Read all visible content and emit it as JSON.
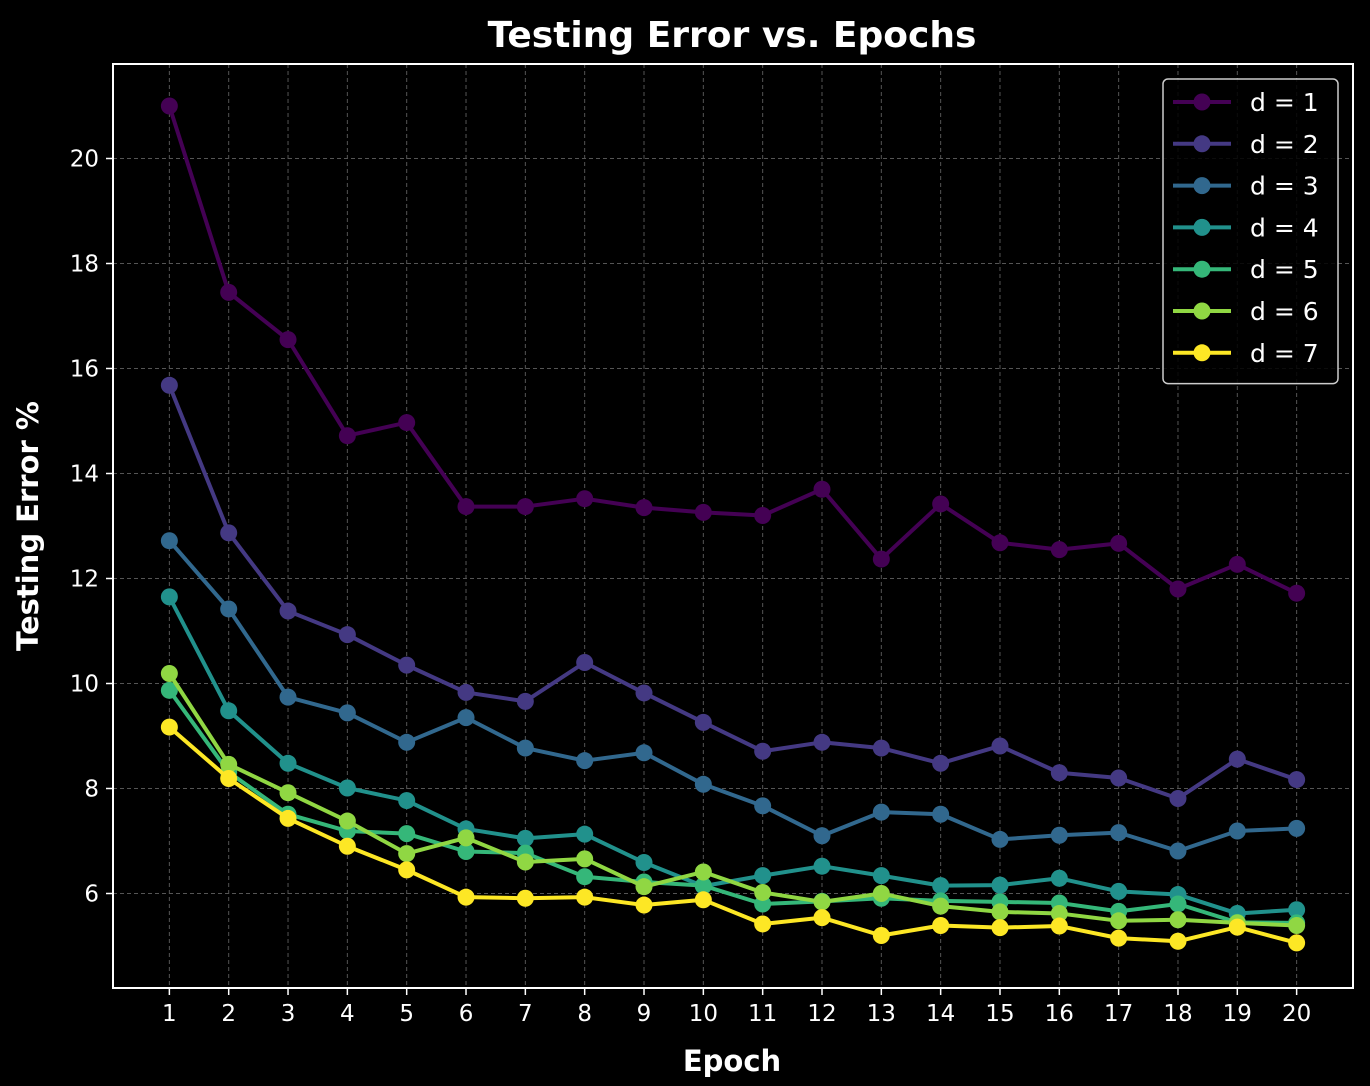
{
  "chart_data": {
    "type": "line",
    "title": "Testing Error vs. Epochs",
    "xlabel": "Epoch",
    "ylabel": "Testing Error %",
    "x": [
      1,
      2,
      3,
      4,
      5,
      6,
      7,
      8,
      9,
      10,
      11,
      12,
      13,
      14,
      15,
      16,
      17,
      18,
      19,
      20
    ],
    "xlim": [
      0.05,
      20.95
    ],
    "ylim": [
      4.2,
      21.8
    ],
    "yticks": [
      6,
      8,
      10,
      12,
      14,
      16,
      18,
      20
    ],
    "grid": true,
    "legend_position": "top-right",
    "series": [
      {
        "name": "d = 1",
        "color": "#440154",
        "values": [
          21.0,
          17.45,
          16.55,
          14.72,
          14.97,
          13.37,
          13.37,
          13.52,
          13.35,
          13.26,
          13.2,
          13.7,
          12.37,
          13.42,
          12.68,
          12.55,
          12.67,
          11.8,
          12.27,
          11.72
        ]
      },
      {
        "name": "d = 2",
        "color": "#443983",
        "values": [
          15.68,
          12.87,
          11.38,
          10.93,
          10.35,
          9.83,
          9.66,
          10.4,
          9.82,
          9.26,
          8.71,
          8.88,
          8.77,
          8.48,
          8.81,
          8.3,
          8.2,
          7.81,
          8.56,
          8.17
        ]
      },
      {
        "name": "d = 3",
        "color": "#31688e",
        "values": [
          12.72,
          11.42,
          9.74,
          9.44,
          8.88,
          9.35,
          8.77,
          8.53,
          8.68,
          8.08,
          7.67,
          7.1,
          7.55,
          7.51,
          7.03,
          7.11,
          7.16,
          6.81,
          7.19,
          7.24
        ]
      },
      {
        "name": "d = 4",
        "color": "#21918c",
        "values": [
          11.65,
          9.48,
          8.48,
          8.01,
          7.77,
          7.23,
          7.05,
          7.13,
          6.59,
          6.14,
          6.34,
          6.52,
          6.34,
          6.15,
          6.16,
          6.29,
          6.04,
          5.98,
          5.62,
          5.69
        ]
      },
      {
        "name": "d = 5",
        "color": "#35b779",
        "values": [
          9.87,
          8.31,
          7.51,
          7.19,
          7.14,
          6.8,
          6.77,
          6.32,
          6.22,
          6.15,
          5.8,
          5.85,
          5.91,
          5.86,
          5.84,
          5.82,
          5.66,
          5.8,
          5.45,
          5.44
        ]
      },
      {
        "name": "d = 6",
        "color": "#90d743",
        "values": [
          10.19,
          8.46,
          7.92,
          7.38,
          6.76,
          7.06,
          6.6,
          6.66,
          6.13,
          6.41,
          6.02,
          5.84,
          6.0,
          5.76,
          5.65,
          5.62,
          5.48,
          5.5,
          5.44,
          5.39
        ]
      },
      {
        "name": "d = 7",
        "color": "#fde725",
        "values": [
          9.17,
          8.19,
          7.43,
          6.9,
          6.45,
          5.93,
          5.91,
          5.93,
          5.78,
          5.88,
          5.42,
          5.54,
          5.2,
          5.39,
          5.35,
          5.38,
          5.15,
          5.09,
          5.36,
          5.06
        ]
      }
    ]
  },
  "colors": {
    "background": "#000000",
    "axes_edge": "#ffffff",
    "grid": "#555555",
    "legend_bg": "#000000",
    "legend_edge": "#cccccc"
  }
}
